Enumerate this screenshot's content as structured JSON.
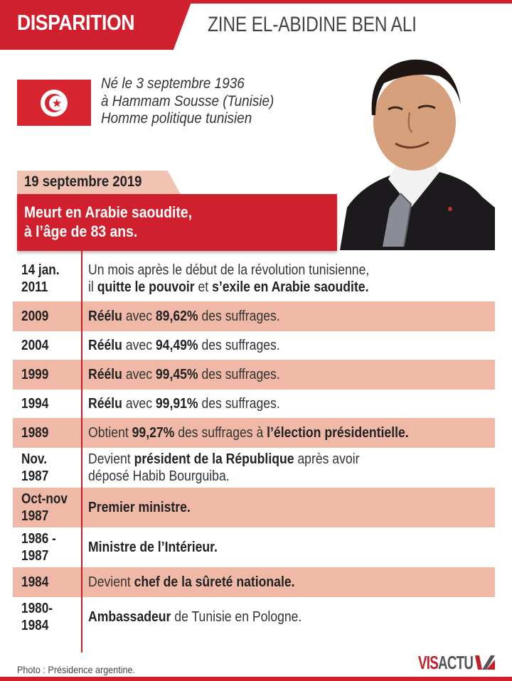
{
  "header": {
    "tab_label": "DISPARITION",
    "title": "ZINE EL-ABIDINE BEN ALI"
  },
  "flag": {
    "icon": "tunisia-flag-icon",
    "color": "#d92530"
  },
  "bio": {
    "lines": [
      "Né le 3 septembre 1936",
      "à Hammam Sousse (Tunisie)",
      "Homme politique tunisien"
    ]
  },
  "death": {
    "date": "19 septembre 2019",
    "lines": [
      "Meurt en Arabie saoudite,",
      "à l’âge de 83 ans."
    ]
  },
  "timeline": [
    {
      "date": [
        "14 jan.",
        "2011"
      ],
      "shaded": false,
      "lines": [
        [
          {
            "t": "Un mois après le début de la révolution tunisienne,",
            "b": false
          }
        ],
        [
          {
            "t": "il ",
            "b": false
          },
          {
            "t": "quitte le pouvoir",
            "b": true
          },
          {
            "t": " et ",
            "b": false
          },
          {
            "t": "s’exile en Arabie saoudite.",
            "b": true
          }
        ]
      ]
    },
    {
      "date": [
        "2009"
      ],
      "shaded": true,
      "lines": [
        [
          {
            "t": "Réélu",
            "b": true
          },
          {
            "t": " avec ",
            "b": false
          },
          {
            "t": "89,62%",
            "b": true
          },
          {
            "t": " des suffrages.",
            "b": false
          }
        ]
      ]
    },
    {
      "date": [
        "2004"
      ],
      "shaded": false,
      "lines": [
        [
          {
            "t": "Réélu",
            "b": true
          },
          {
            "t": " avec ",
            "b": false
          },
          {
            "t": "94,49%",
            "b": true
          },
          {
            "t": " des suffrages.",
            "b": false
          }
        ]
      ]
    },
    {
      "date": [
        "1999"
      ],
      "shaded": true,
      "lines": [
        [
          {
            "t": "Réélu",
            "b": true
          },
          {
            "t": " avec ",
            "b": false
          },
          {
            "t": "99,45%",
            "b": true
          },
          {
            "t": " des suffrages.",
            "b": false
          }
        ]
      ]
    },
    {
      "date": [
        "1994"
      ],
      "shaded": false,
      "lines": [
        [
          {
            "t": "Réélu",
            "b": true
          },
          {
            "t": " avec ",
            "b": false
          },
          {
            "t": "99,91%",
            "b": true
          },
          {
            "t": " des suffrages.",
            "b": false
          }
        ]
      ]
    },
    {
      "date": [
        "1989"
      ],
      "shaded": true,
      "lines": [
        [
          {
            "t": "Obtient ",
            "b": false
          },
          {
            "t": "99,27%",
            "b": true
          },
          {
            "t": " des suffrages à ",
            "b": false
          },
          {
            "t": "l’élection présidentielle.",
            "b": true
          }
        ]
      ]
    },
    {
      "date": [
        "Nov.",
        "1987"
      ],
      "shaded": false,
      "lines": [
        [
          {
            "t": "Devient ",
            "b": false
          },
          {
            "t": "président de la République",
            "b": true
          },
          {
            "t": " après avoir",
            "b": false
          }
        ],
        [
          {
            "t": "déposé Habib Bourguiba.",
            "b": false
          }
        ]
      ]
    },
    {
      "date": [
        "Oct-nov",
        "1987"
      ],
      "shaded": true,
      "lines": [
        [
          {
            "t": "Premier ministre.",
            "b": true
          }
        ]
      ]
    },
    {
      "date": [
        "1986 -",
        "1987"
      ],
      "shaded": false,
      "lines": [
        [
          {
            "t": "Ministre de l’Intérieur.",
            "b": true
          }
        ]
      ]
    },
    {
      "date": [
        "1984"
      ],
      "shaded": true,
      "lines": [
        [
          {
            "t": "Devient ",
            "b": false
          },
          {
            "t": "chef de la sûreté nationale.",
            "b": true
          }
        ]
      ]
    },
    {
      "date": [
        "1980-",
        "1984"
      ],
      "shaded": false,
      "lines": [
        [
          {
            "t": "Ambassadeur",
            "b": true
          },
          {
            "t": " de Tunisie en Pologne.",
            "b": false
          }
        ]
      ]
    }
  ],
  "footer": {
    "credit": "Photo : Présidence argentine.",
    "logo": {
      "part1": "VIS",
      "part2": "ACTU"
    }
  },
  "colors": {
    "accent_red": "#d0202e",
    "shaded_row": "#efb8a7",
    "date_tab": "#f0c3b3",
    "timeline_line": "#c41e2a"
  }
}
